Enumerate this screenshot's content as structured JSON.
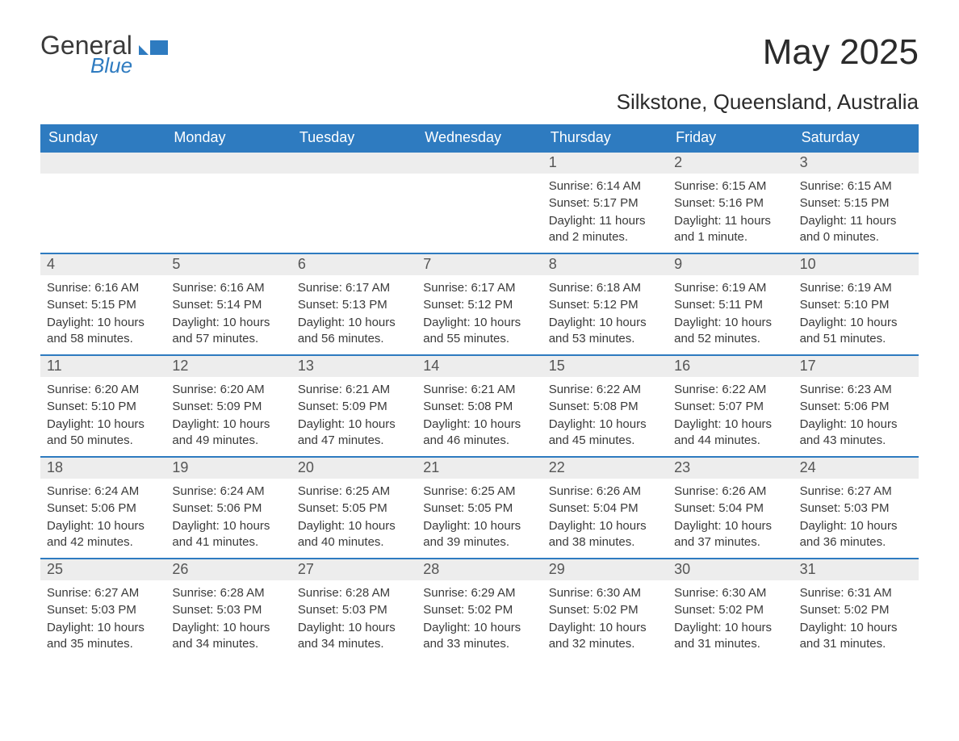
{
  "brand": {
    "name_line1": "General",
    "name_line2": "Blue",
    "flag_color": "#2e7bc0"
  },
  "title": "May 2025",
  "location": "Silkstone, Queensland, Australia",
  "colors": {
    "header_bg": "#2e7bc0",
    "header_text": "#ffffff",
    "daynum_bg": "#ededed",
    "text": "#3a3a3a",
    "week_border": "#2e7bc0",
    "page_bg": "#ffffff"
  },
  "day_names": [
    "Sunday",
    "Monday",
    "Tuesday",
    "Wednesday",
    "Thursday",
    "Friday",
    "Saturday"
  ],
  "cell_style": {
    "font_size_data": 15,
    "font_size_daynum": 18,
    "font_size_header": 18,
    "min_height": 124
  },
  "weeks": [
    [
      {
        "day": null
      },
      {
        "day": null
      },
      {
        "day": null
      },
      {
        "day": null
      },
      {
        "day": 1,
        "sunrise": "6:14 AM",
        "sunset": "5:17 PM",
        "daylight": "11 hours and 2 minutes."
      },
      {
        "day": 2,
        "sunrise": "6:15 AM",
        "sunset": "5:16 PM",
        "daylight": "11 hours and 1 minute."
      },
      {
        "day": 3,
        "sunrise": "6:15 AM",
        "sunset": "5:15 PM",
        "daylight": "11 hours and 0 minutes."
      }
    ],
    [
      {
        "day": 4,
        "sunrise": "6:16 AM",
        "sunset": "5:15 PM",
        "daylight": "10 hours and 58 minutes."
      },
      {
        "day": 5,
        "sunrise": "6:16 AM",
        "sunset": "5:14 PM",
        "daylight": "10 hours and 57 minutes."
      },
      {
        "day": 6,
        "sunrise": "6:17 AM",
        "sunset": "5:13 PM",
        "daylight": "10 hours and 56 minutes."
      },
      {
        "day": 7,
        "sunrise": "6:17 AM",
        "sunset": "5:12 PM",
        "daylight": "10 hours and 55 minutes."
      },
      {
        "day": 8,
        "sunrise": "6:18 AM",
        "sunset": "5:12 PM",
        "daylight": "10 hours and 53 minutes."
      },
      {
        "day": 9,
        "sunrise": "6:19 AM",
        "sunset": "5:11 PM",
        "daylight": "10 hours and 52 minutes."
      },
      {
        "day": 10,
        "sunrise": "6:19 AM",
        "sunset": "5:10 PM",
        "daylight": "10 hours and 51 minutes."
      }
    ],
    [
      {
        "day": 11,
        "sunrise": "6:20 AM",
        "sunset": "5:10 PM",
        "daylight": "10 hours and 50 minutes."
      },
      {
        "day": 12,
        "sunrise": "6:20 AM",
        "sunset": "5:09 PM",
        "daylight": "10 hours and 49 minutes."
      },
      {
        "day": 13,
        "sunrise": "6:21 AM",
        "sunset": "5:09 PM",
        "daylight": "10 hours and 47 minutes."
      },
      {
        "day": 14,
        "sunrise": "6:21 AM",
        "sunset": "5:08 PM",
        "daylight": "10 hours and 46 minutes."
      },
      {
        "day": 15,
        "sunrise": "6:22 AM",
        "sunset": "5:08 PM",
        "daylight": "10 hours and 45 minutes."
      },
      {
        "day": 16,
        "sunrise": "6:22 AM",
        "sunset": "5:07 PM",
        "daylight": "10 hours and 44 minutes."
      },
      {
        "day": 17,
        "sunrise": "6:23 AM",
        "sunset": "5:06 PM",
        "daylight": "10 hours and 43 minutes."
      }
    ],
    [
      {
        "day": 18,
        "sunrise": "6:24 AM",
        "sunset": "5:06 PM",
        "daylight": "10 hours and 42 minutes."
      },
      {
        "day": 19,
        "sunrise": "6:24 AM",
        "sunset": "5:06 PM",
        "daylight": "10 hours and 41 minutes."
      },
      {
        "day": 20,
        "sunrise": "6:25 AM",
        "sunset": "5:05 PM",
        "daylight": "10 hours and 40 minutes."
      },
      {
        "day": 21,
        "sunrise": "6:25 AM",
        "sunset": "5:05 PM",
        "daylight": "10 hours and 39 minutes."
      },
      {
        "day": 22,
        "sunrise": "6:26 AM",
        "sunset": "5:04 PM",
        "daylight": "10 hours and 38 minutes."
      },
      {
        "day": 23,
        "sunrise": "6:26 AM",
        "sunset": "5:04 PM",
        "daylight": "10 hours and 37 minutes."
      },
      {
        "day": 24,
        "sunrise": "6:27 AM",
        "sunset": "5:03 PM",
        "daylight": "10 hours and 36 minutes."
      }
    ],
    [
      {
        "day": 25,
        "sunrise": "6:27 AM",
        "sunset": "5:03 PM",
        "daylight": "10 hours and 35 minutes."
      },
      {
        "day": 26,
        "sunrise": "6:28 AM",
        "sunset": "5:03 PM",
        "daylight": "10 hours and 34 minutes."
      },
      {
        "day": 27,
        "sunrise": "6:28 AM",
        "sunset": "5:03 PM",
        "daylight": "10 hours and 34 minutes."
      },
      {
        "day": 28,
        "sunrise": "6:29 AM",
        "sunset": "5:02 PM",
        "daylight": "10 hours and 33 minutes."
      },
      {
        "day": 29,
        "sunrise": "6:30 AM",
        "sunset": "5:02 PM",
        "daylight": "10 hours and 32 minutes."
      },
      {
        "day": 30,
        "sunrise": "6:30 AM",
        "sunset": "5:02 PM",
        "daylight": "10 hours and 31 minutes."
      },
      {
        "day": 31,
        "sunrise": "6:31 AM",
        "sunset": "5:02 PM",
        "daylight": "10 hours and 31 minutes."
      }
    ]
  ],
  "labels": {
    "sunrise": "Sunrise:",
    "sunset": "Sunset:",
    "daylight": "Daylight:"
  }
}
